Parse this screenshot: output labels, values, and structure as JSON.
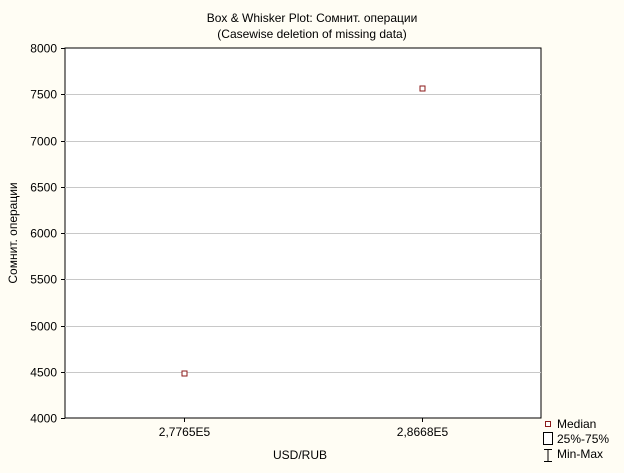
{
  "chart_data": {
    "type": "box",
    "title": "Box & Whisker Plot: Сомнит. операции",
    "subtitle": "(Casewise deletion of missing data)",
    "xlabel": "USD/RUB",
    "ylabel": "Сомнит. операции",
    "categories": [
      "2,7765E5",
      "2,8668E5"
    ],
    "series": [
      {
        "name": "Median",
        "values": [
          4490,
          7570
        ]
      }
    ],
    "quartiles_25_75": [
      [
        4490,
        4490
      ],
      [
        7570,
        7570
      ]
    ],
    "min_max": [
      [
        4490,
        4490
      ],
      [
        7570,
        7570
      ]
    ],
    "ylim": [
      4000,
      8000
    ],
    "yticks": [
      4000,
      4500,
      5000,
      5500,
      6000,
      6500,
      7000,
      7500,
      8000
    ],
    "grid": true,
    "legend_position": "bottom-right",
    "legend": [
      "Median",
      "25%-75%",
      "Min-Max"
    ],
    "colors": {
      "background": "#fffdf4",
      "plot_background": "#ffffff",
      "median_marker": "#8b1a1a",
      "grid": "#c8c8c8",
      "axis": "#000000"
    }
  }
}
